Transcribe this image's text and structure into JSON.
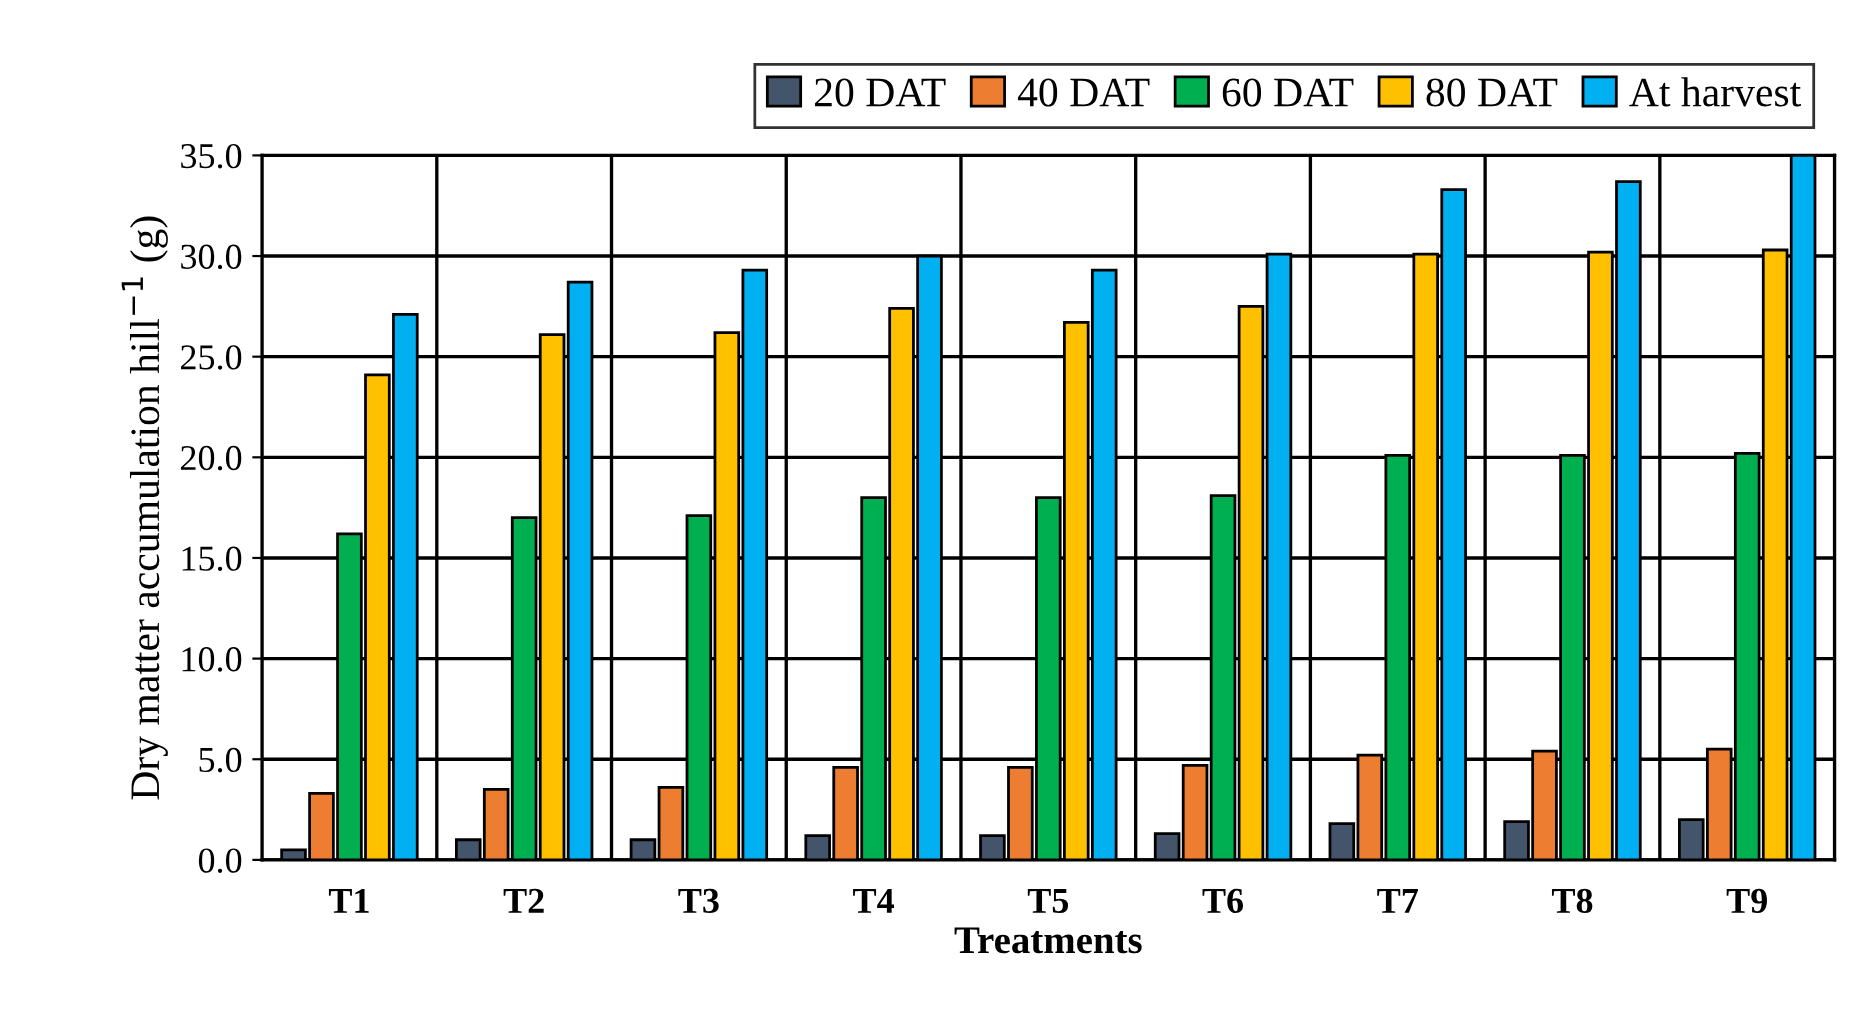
{
  "chart_data": {
    "type": "bar",
    "xlabel": "Treatments",
    "ylabel": "Dry matter accumulation hill$^{−1}$ (g)",
    "categories": [
      "T1",
      "T2",
      "T3",
      "T4",
      "T5",
      "T6",
      "T7",
      "T8",
      "T9"
    ],
    "series": [
      {
        "name": "20 DAT",
        "color": "#44546a",
        "values": [
          0.5,
          1.0,
          1.0,
          1.2,
          1.2,
          1.3,
          1.8,
          1.9,
          2.0
        ]
      },
      {
        "name": "40 DAT",
        "color": "#ed7d31",
        "values": [
          3.3,
          3.5,
          3.6,
          4.6,
          4.6,
          4.7,
          5.2,
          5.4,
          5.5
        ]
      },
      {
        "name": "60 DAT",
        "color": "#00b050",
        "values": [
          16.2,
          17.0,
          17.1,
          18.0,
          18.0,
          18.1,
          20.1,
          20.1,
          20.2
        ]
      },
      {
        "name": "80 DAT",
        "color": "#ffc000",
        "values": [
          24.1,
          26.1,
          26.2,
          27.4,
          26.7,
          27.5,
          30.1,
          30.2,
          30.3
        ]
      },
      {
        "name": "At harvest",
        "color": "#00b0f0",
        "values": [
          27.1,
          28.7,
          29.3,
          30.0,
          29.3,
          30.1,
          33.3,
          33.7,
          35.0
        ]
      }
    ],
    "ylim": [
      0,
      35
    ],
    "yticks": [
      {
        "value": 0,
        "label": "0.0"
      },
      {
        "value": 5,
        "label": "5.0"
      },
      {
        "value": 10,
        "label": "10.0"
      },
      {
        "value": 15,
        "label": "15.0"
      },
      {
        "value": 20,
        "label": "20.0"
      },
      {
        "value": 25,
        "label": "25.0"
      },
      {
        "value": 30,
        "label": "30.0"
      },
      {
        "value": 35,
        "label": "35.0"
      }
    ],
    "grid": true,
    "legend": "top right"
  }
}
